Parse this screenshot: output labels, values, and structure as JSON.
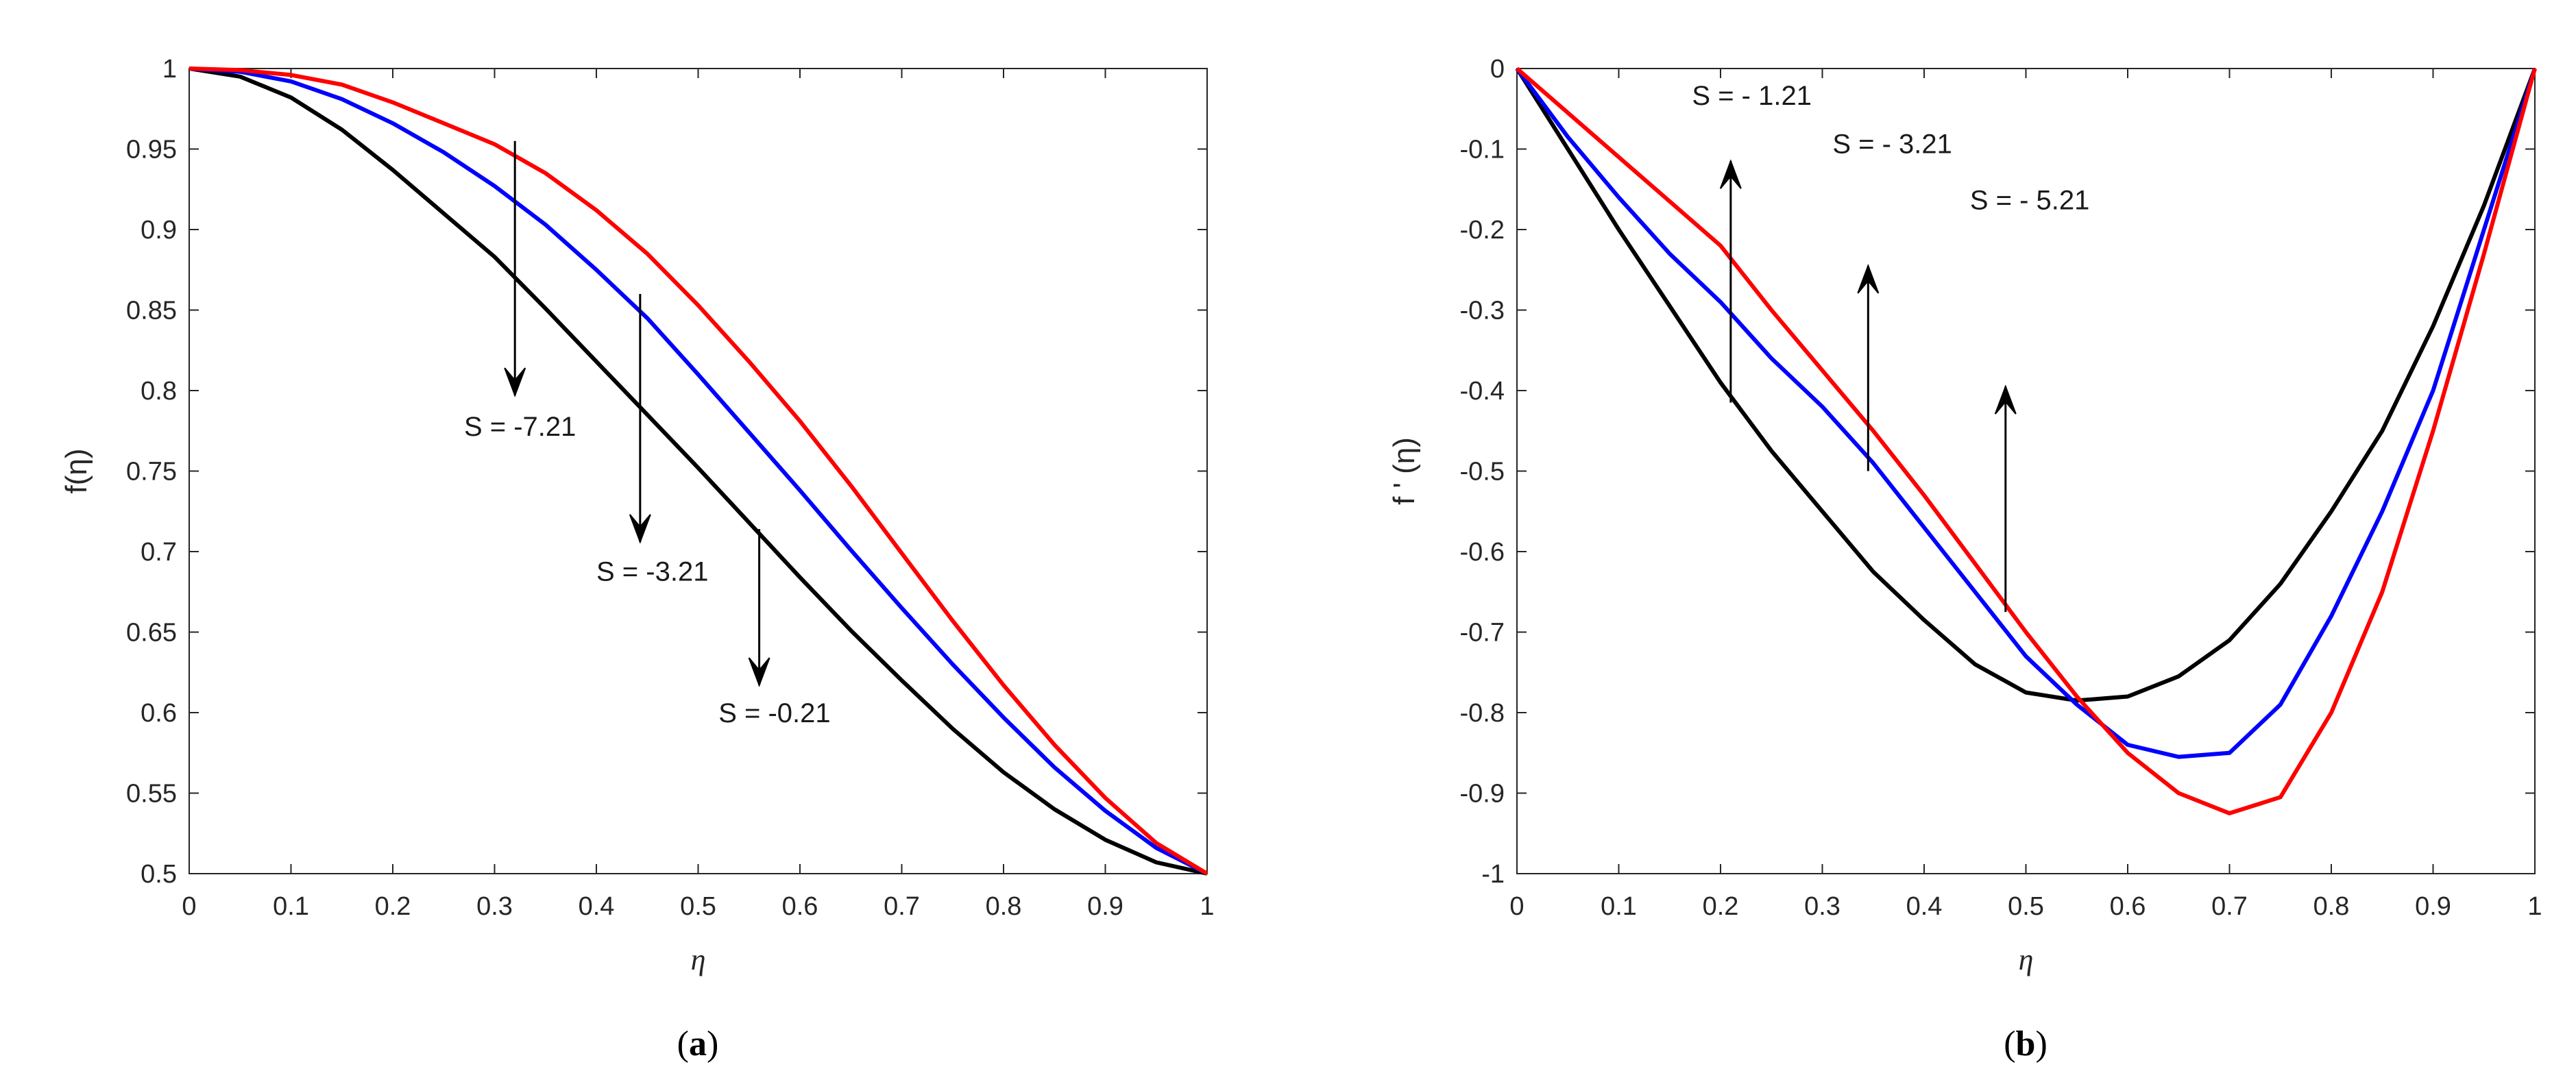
{
  "chart_data": [
    {
      "type": "line",
      "panel": "a",
      "caption_open": "(",
      "caption_letter": "a",
      "caption_close": ")",
      "xlabel": "η",
      "ylabel": "f(η)",
      "xlim": [
        0,
        1
      ],
      "ylim": [
        0.5,
        1
      ],
      "xticks": [
        0,
        0.1,
        0.2,
        0.3,
        0.4,
        0.5,
        0.6,
        0.7,
        0.8,
        0.9,
        1
      ],
      "xtick_labels": [
        "0",
        "0.1",
        "0.2",
        "0.3",
        "0.4",
        "0.5",
        "0.6",
        "0.7",
        "0.8",
        "0.9",
        "1"
      ],
      "yticks": [
        0.5,
        0.55,
        0.6,
        0.65,
        0.7,
        0.75,
        0.8,
        0.85,
        0.9,
        0.95,
        1
      ],
      "ytick_labels": [
        "0.5",
        "0.55",
        "0.6",
        "0.65",
        "0.7",
        "0.75",
        "0.8",
        "0.85",
        "0.9",
        "0.95",
        "1"
      ],
      "x": [
        0,
        0.05,
        0.1,
        0.15,
        0.2,
        0.25,
        0.3,
        0.35,
        0.4,
        0.45,
        0.5,
        0.55,
        0.6,
        0.65,
        0.7,
        0.75,
        0.8,
        0.85,
        0.9,
        0.95,
        1
      ],
      "series": [
        {
          "name": "S = -0.21",
          "color": "#000000",
          "values": [
            1,
            0.995,
            0.982,
            0.962,
            0.937,
            0.91,
            0.883,
            0.851,
            0.818,
            0.785,
            0.752,
            0.718,
            0.684,
            0.651,
            0.62,
            0.59,
            0.563,
            0.54,
            0.521,
            0.507,
            0.5
          ]
        },
        {
          "name": "S = -3.21",
          "color": "#0000ff",
          "values": [
            1,
            0.998,
            0.992,
            0.981,
            0.966,
            0.948,
            0.927,
            0.903,
            0.875,
            0.845,
            0.81,
            0.774,
            0.738,
            0.701,
            0.665,
            0.63,
            0.597,
            0.566,
            0.539,
            0.516,
            0.5
          ]
        },
        {
          "name": "S = -7.21",
          "color": "#ff0000",
          "values": [
            1,
            0.999,
            0.996,
            0.99,
            0.979,
            0.966,
            0.953,
            0.935,
            0.912,
            0.885,
            0.853,
            0.818,
            0.781,
            0.741,
            0.699,
            0.657,
            0.617,
            0.58,
            0.547,
            0.519,
            0.5
          ]
        }
      ],
      "annotations": [
        {
          "text": "S = -7.21",
          "x_from": 0.32,
          "y_from": 0.955,
          "y_to": 0.797,
          "label_x": 0.27,
          "label_y": 0.772
        },
        {
          "text": "S = -3.21",
          "x_from": 0.443,
          "y_from": 0.86,
          "y_to": 0.706,
          "label_x": 0.4,
          "label_y": 0.682
        },
        {
          "text": "S = -0.21",
          "x_from": 0.56,
          "y_from": 0.714,
          "y_to": 0.617,
          "label_x": 0.52,
          "label_y": 0.594
        }
      ]
    },
    {
      "type": "line",
      "panel": "b",
      "caption_open": "(",
      "caption_letter": "b",
      "caption_close": ")",
      "xlabel": "η",
      "ylabel": "f ' (η)",
      "xlim": [
        0,
        1
      ],
      "ylim": [
        -1,
        0
      ],
      "xticks": [
        0,
        0.1,
        0.2,
        0.3,
        0.4,
        0.5,
        0.6,
        0.7,
        0.8,
        0.9,
        1
      ],
      "xtick_labels": [
        "0",
        "0.1",
        "0.2",
        "0.3",
        "0.4",
        "0.5",
        "0.6",
        "0.7",
        "0.8",
        "0.9",
        "1"
      ],
      "yticks": [
        -1,
        -0.9,
        -0.8,
        -0.7,
        -0.6,
        -0.5,
        -0.4,
        -0.3,
        -0.2,
        -0.1,
        0
      ],
      "ytick_labels": [
        "-1",
        "-0.9",
        "-0.8",
        "-0.7",
        "-0.6",
        "-0.5",
        "-0.4",
        "-0.3",
        "-0.2",
        "-0.1",
        "0"
      ],
      "x": [
        0,
        0.05,
        0.1,
        0.15,
        0.2,
        0.25,
        0.3,
        0.35,
        0.4,
        0.45,
        0.5,
        0.55,
        0.6,
        0.65,
        0.7,
        0.75,
        0.8,
        0.85,
        0.9,
        0.95,
        1
      ],
      "series": [
        {
          "name": "S = - 5.21",
          "color": "#000000",
          "values": [
            0,
            -0.1,
            -0.2,
            -0.295,
            -0.39,
            -0.475,
            -0.55,
            -0.625,
            -0.685,
            -0.74,
            -0.775,
            -0.785,
            -0.78,
            -0.755,
            -0.71,
            -0.64,
            -0.55,
            -0.45,
            -0.32,
            -0.17,
            0
          ]
        },
        {
          "name": "S = - 3.21",
          "color": "#0000ff",
          "values": [
            0,
            -0.085,
            -0.16,
            -0.23,
            -0.29,
            -0.36,
            -0.42,
            -0.49,
            -0.57,
            -0.65,
            -0.73,
            -0.79,
            -0.84,
            -0.855,
            -0.85,
            -0.79,
            -0.68,
            -0.55,
            -0.4,
            -0.2,
            0
          ]
        },
        {
          "name": "S = - 1.21",
          "color": "#ff0000",
          "values": [
            0,
            -0.055,
            -0.11,
            -0.165,
            -0.22,
            -0.3,
            -0.375,
            -0.45,
            -0.53,
            -0.615,
            -0.7,
            -0.78,
            -0.85,
            -0.9,
            -0.925,
            -0.905,
            -0.8,
            -0.65,
            -0.45,
            -0.23,
            0
          ]
        }
      ],
      "annotations": [
        {
          "text": "S = - 1.21",
          "x_from": 0.21,
          "y_from": -0.415,
          "y_to": -0.115,
          "label_x": 0.172,
          "label_y": -0.045
        },
        {
          "text": "S = - 3.21",
          "x_from": 0.345,
          "y_from": -0.5,
          "y_to": -0.245,
          "label_x": 0.31,
          "label_y": -0.105
        },
        {
          "text": "S = - 5.21",
          "x_from": 0.48,
          "y_from": -0.675,
          "y_to": -0.395,
          "label_x": 0.445,
          "label_y": -0.175
        }
      ]
    }
  ]
}
